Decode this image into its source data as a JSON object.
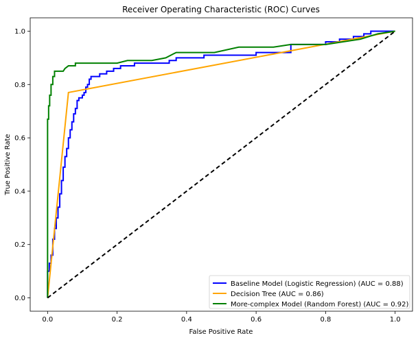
{
  "chart_data": {
    "type": "line",
    "title": "Receiver Operating Characteristic (ROC) Curves",
    "xlabel": "False Positive Rate",
    "ylabel": "True Positive Rate",
    "xlim": [
      -0.05,
      1.05
    ],
    "ylim": [
      -0.05,
      1.05
    ],
    "xticks": [
      0.0,
      0.2,
      0.4,
      0.6,
      0.8,
      1.0
    ],
    "yticks": [
      0.0,
      0.2,
      0.4,
      0.6,
      0.8,
      1.0
    ],
    "tick_labels_x": [
      "0.0",
      "0.2",
      "0.4",
      "0.6",
      "0.8",
      "1.0"
    ],
    "tick_labels_y": [
      "0.0",
      "0.2",
      "0.4",
      "0.6",
      "0.8",
      "1.0"
    ],
    "grid": false,
    "legend_position": "lower-right",
    "series": [
      {
        "name": "Baseline Model (Logistic Regression) (AUC = 0.88)",
        "color": "#0000ff",
        "points": [
          [
            0,
            0
          ],
          [
            0,
            0.1
          ],
          [
            0.005,
            0.1
          ],
          [
            0.005,
            0.13
          ],
          [
            0.01,
            0.13
          ],
          [
            0.01,
            0.16
          ],
          [
            0.015,
            0.16
          ],
          [
            0.015,
            0.22
          ],
          [
            0.02,
            0.22
          ],
          [
            0.02,
            0.26
          ],
          [
            0.025,
            0.26
          ],
          [
            0.025,
            0.3
          ],
          [
            0.03,
            0.3
          ],
          [
            0.03,
            0.34
          ],
          [
            0.035,
            0.34
          ],
          [
            0.035,
            0.39
          ],
          [
            0.04,
            0.39
          ],
          [
            0.04,
            0.44
          ],
          [
            0.045,
            0.44
          ],
          [
            0.045,
            0.49
          ],
          [
            0.05,
            0.49
          ],
          [
            0.05,
            0.53
          ],
          [
            0.055,
            0.53
          ],
          [
            0.055,
            0.56
          ],
          [
            0.06,
            0.56
          ],
          [
            0.06,
            0.6
          ],
          [
            0.065,
            0.6
          ],
          [
            0.065,
            0.63
          ],
          [
            0.07,
            0.63
          ],
          [
            0.07,
            0.66
          ],
          [
            0.075,
            0.66
          ],
          [
            0.075,
            0.69
          ],
          [
            0.08,
            0.69
          ],
          [
            0.08,
            0.71
          ],
          [
            0.085,
            0.71
          ],
          [
            0.085,
            0.74
          ],
          [
            0.09,
            0.74
          ],
          [
            0.09,
            0.75
          ],
          [
            0.1,
            0.75
          ],
          [
            0.1,
            0.76
          ],
          [
            0.105,
            0.76
          ],
          [
            0.105,
            0.77
          ],
          [
            0.11,
            0.77
          ],
          [
            0.11,
            0.79
          ],
          [
            0.115,
            0.79
          ],
          [
            0.115,
            0.8
          ],
          [
            0.12,
            0.8
          ],
          [
            0.12,
            0.82
          ],
          [
            0.125,
            0.82
          ],
          [
            0.125,
            0.83
          ],
          [
            0.15,
            0.83
          ],
          [
            0.15,
            0.84
          ],
          [
            0.17,
            0.84
          ],
          [
            0.17,
            0.85
          ],
          [
            0.19,
            0.85
          ],
          [
            0.19,
            0.86
          ],
          [
            0.21,
            0.86
          ],
          [
            0.21,
            0.87
          ],
          [
            0.25,
            0.87
          ],
          [
            0.25,
            0.88
          ],
          [
            0.35,
            0.88
          ],
          [
            0.35,
            0.89
          ],
          [
            0.37,
            0.89
          ],
          [
            0.37,
            0.9
          ],
          [
            0.45,
            0.9
          ],
          [
            0.45,
            0.91
          ],
          [
            0.6,
            0.91
          ],
          [
            0.6,
            0.92
          ],
          [
            0.7,
            0.92
          ],
          [
            0.7,
            0.95
          ],
          [
            0.8,
            0.95
          ],
          [
            0.8,
            0.96
          ],
          [
            0.84,
            0.96
          ],
          [
            0.84,
            0.97
          ],
          [
            0.88,
            0.97
          ],
          [
            0.88,
            0.98
          ],
          [
            0.91,
            0.98
          ],
          [
            0.91,
            0.99
          ],
          [
            0.93,
            0.99
          ],
          [
            0.93,
            1.0
          ],
          [
            1.0,
            1.0
          ]
        ]
      },
      {
        "name": "Decision Tree (AUC = 0.86)",
        "color": "#ffa500",
        "points": [
          [
            0,
            0
          ],
          [
            0.06,
            0.77
          ],
          [
            1.0,
            1.0
          ]
        ]
      },
      {
        "name": "More-complex Model (Random Forest) (AUC = 0.92)",
        "color": "#008000",
        "points": [
          [
            0,
            0
          ],
          [
            0,
            0.67
          ],
          [
            0.003,
            0.67
          ],
          [
            0.003,
            0.72
          ],
          [
            0.006,
            0.72
          ],
          [
            0.006,
            0.76
          ],
          [
            0.01,
            0.76
          ],
          [
            0.01,
            0.8
          ],
          [
            0.015,
            0.8
          ],
          [
            0.015,
            0.83
          ],
          [
            0.02,
            0.83
          ],
          [
            0.02,
            0.85
          ],
          [
            0.045,
            0.85
          ],
          [
            0.05,
            0.86
          ],
          [
            0.06,
            0.87
          ],
          [
            0.08,
            0.87
          ],
          [
            0.08,
            0.88
          ],
          [
            0.2,
            0.88
          ],
          [
            0.23,
            0.89
          ],
          [
            0.3,
            0.89
          ],
          [
            0.34,
            0.9
          ],
          [
            0.37,
            0.92
          ],
          [
            0.48,
            0.92
          ],
          [
            0.55,
            0.94
          ],
          [
            0.65,
            0.94
          ],
          [
            0.7,
            0.95
          ],
          [
            0.8,
            0.95
          ],
          [
            0.85,
            0.96
          ],
          [
            0.9,
            0.97
          ],
          [
            0.95,
            0.99
          ],
          [
            1.0,
            1.0
          ]
        ]
      }
    ],
    "reference_line": {
      "color": "#000000",
      "dashed": true,
      "points": [
        [
          0,
          0
        ],
        [
          1,
          1
        ]
      ]
    }
  }
}
